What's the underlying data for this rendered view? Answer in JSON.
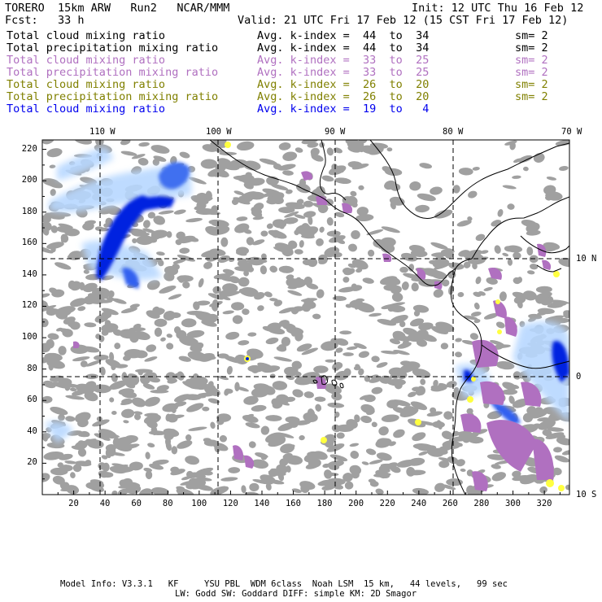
{
  "header": {
    "model": "TORERO  15km ARW   Run2   NCAR/MMM",
    "init": "Init: 12 UTC Thu 16 Feb 12",
    "fcst": "Fcst:   33 h",
    "valid": "Valid: 21 UTC Fri 17 Feb 12 (15 CST Fri 17 Feb 12)"
  },
  "legend": [
    {
      "field": "Total cloud mixing ratio",
      "range": "Avg. k-index =  44  to  34",
      "sm": "sm= 2",
      "color": "#000000"
    },
    {
      "field": "Total precipitation mixing ratio",
      "range": "Avg. k-index =  44  to  34",
      "sm": "sm= 2",
      "color": "#000000"
    },
    {
      "field": "Total cloud mixing ratio",
      "range": "Avg. k-index =  33  to  25",
      "sm": "sm= 2",
      "color": "#b070c0"
    },
    {
      "field": "Total precipitation mixing ratio",
      "range": "Avg. k-index =  33  to  25",
      "sm": "sm= 2",
      "color": "#b070c0"
    },
    {
      "field": "Total cloud mixing ratio",
      "range": "Avg. k-index =  26  to  20",
      "sm": "sm= 2",
      "color": "#808000"
    },
    {
      "field": "Total precipitation mixing ratio",
      "range": "Avg. k-index =  26  to  20",
      "sm": "sm= 2",
      "color": "#808000"
    },
    {
      "field": "Total cloud mixing ratio",
      "range": "Avg. k-index =  19  to   4",
      "sm": "",
      "color": "#0000ee"
    }
  ],
  "top_lon_labels": [
    "110 W",
    "100 W",
    "90 W",
    "80 W",
    "70 W"
  ],
  "right_lat_labels": [
    "10 N",
    "0",
    "10 S"
  ],
  "x_ticks": [
    "20",
    "40",
    "60",
    "80",
    "100",
    "120",
    "140",
    "160",
    "180",
    "200",
    "220",
    "240",
    "260",
    "280",
    "300",
    "320"
  ],
  "y_ticks": [
    "220",
    "200",
    "180",
    "160",
    "140",
    "120",
    "100",
    "80",
    "60",
    "40",
    "20"
  ],
  "colors": {
    "gray": "#a0a0a0",
    "purple": "#b070c0",
    "blue_dark": "#0020e0",
    "blue_light": "#b8d8ff",
    "yellow": "#ffff40"
  },
  "footer": {
    "line1": "Model Info: V3.3.1   KF     YSU PBL  WDM 6class  Noah LSM  15 km,   44 levels,   99 sec",
    "line2": "LW: Godd SW: Goddard DIFF: simple KM: 2D Smagor"
  }
}
